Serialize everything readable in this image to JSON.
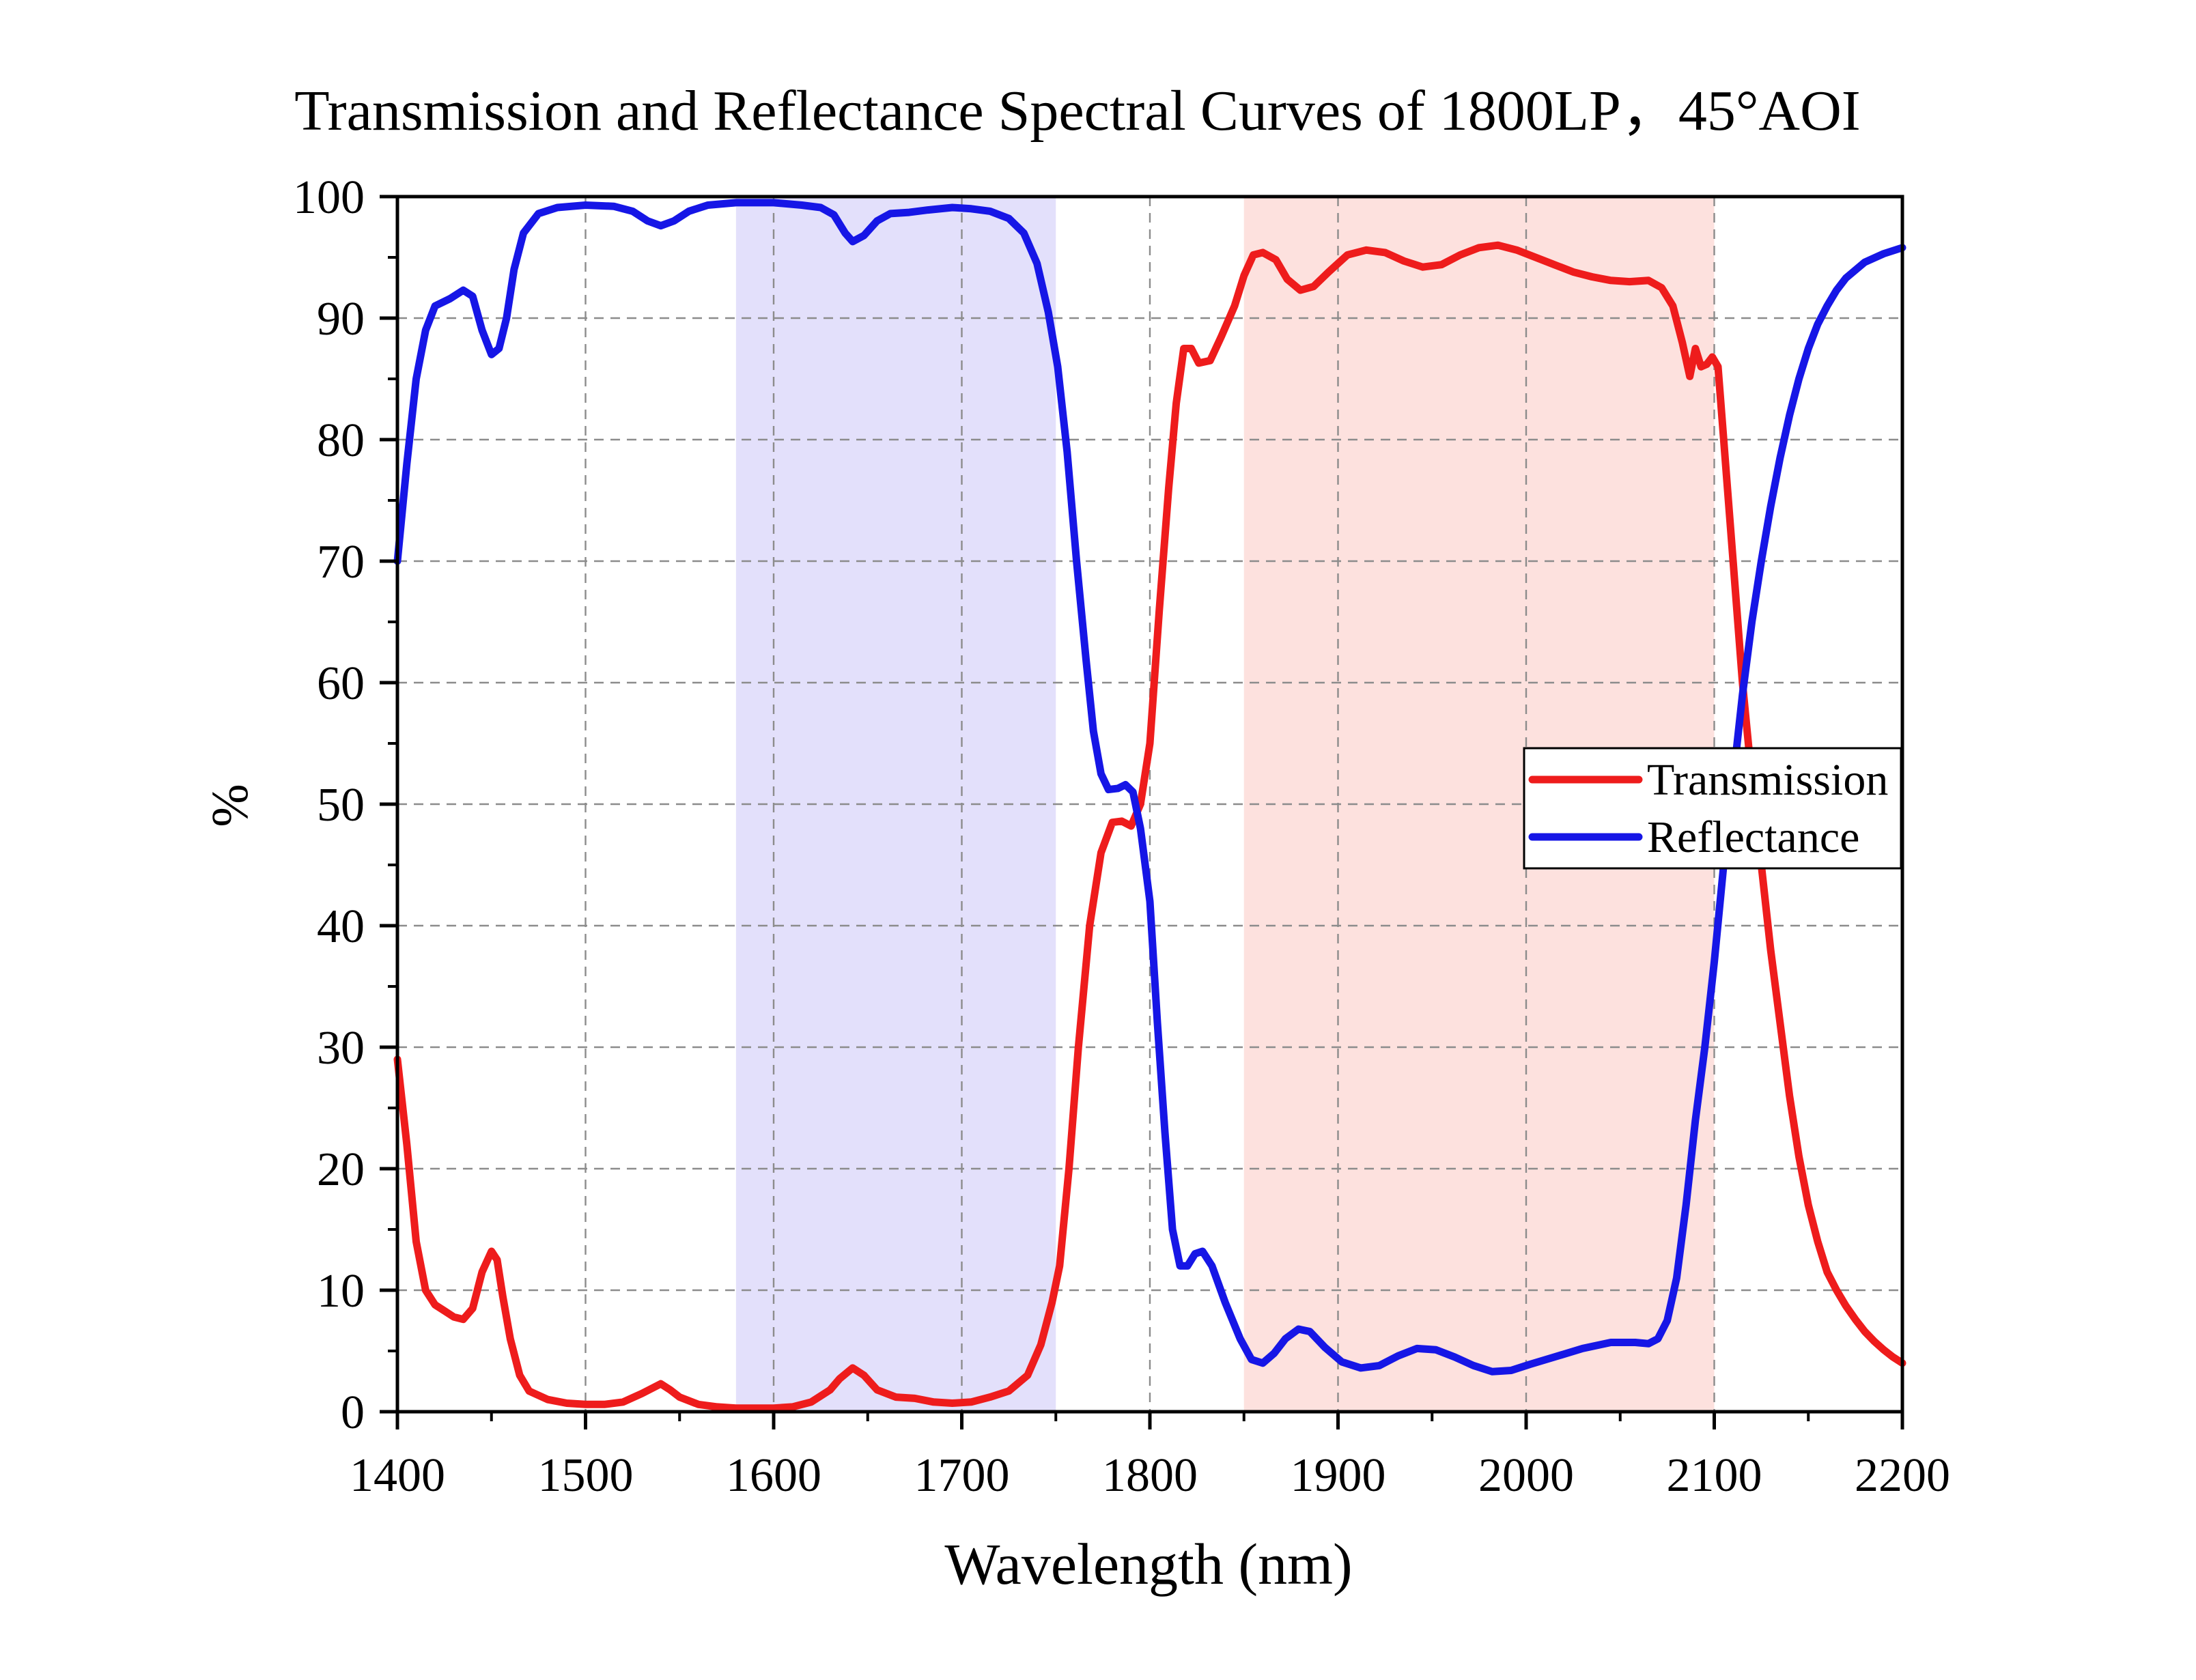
{
  "chart_data": {
    "type": "line",
    "title": "Transmission and Reflectance Spectral Curves of 1800LP，45°AOI",
    "xlabel": "Wavelength (nm)",
    "ylabel": "%",
    "xlim": [
      1400,
      2200
    ],
    "ylim": [
      0,
      100
    ],
    "xticks": [
      1400,
      1500,
      1600,
      1700,
      1800,
      1900,
      2000,
      2100,
      2200
    ],
    "yticks": [
      0,
      10,
      20,
      30,
      40,
      50,
      60,
      70,
      80,
      90,
      100
    ],
    "grid": true,
    "legend_position": "right-middle",
    "shaded_bands": [
      {
        "x": [
          1580,
          1750
        ],
        "color": "#e3e0fb"
      },
      {
        "x": [
          1850,
          2100
        ],
        "color": "#fde1de"
      }
    ],
    "series": [
      {
        "name": "Transmission",
        "color": "#ee1c1c",
        "points": [
          [
            1400,
            29
          ],
          [
            1405,
            22
          ],
          [
            1410,
            14
          ],
          [
            1415,
            10
          ],
          [
            1420,
            8.8
          ],
          [
            1425,
            8.3
          ],
          [
            1430,
            7.8
          ],
          [
            1435,
            7.6
          ],
          [
            1440,
            8.5
          ],
          [
            1445,
            11.5
          ],
          [
            1450,
            13.2
          ],
          [
            1453,
            12.5
          ],
          [
            1456,
            9.5
          ],
          [
            1460,
            6
          ],
          [
            1465,
            3
          ],
          [
            1470,
            1.7
          ],
          [
            1480,
            1
          ],
          [
            1490,
            0.7
          ],
          [
            1500,
            0.6
          ],
          [
            1510,
            0.6
          ],
          [
            1520,
            0.8
          ],
          [
            1530,
            1.5
          ],
          [
            1540,
            2.3
          ],
          [
            1545,
            1.8
          ],
          [
            1550,
            1.2
          ],
          [
            1560,
            0.6
          ],
          [
            1570,
            0.4
          ],
          [
            1580,
            0.3
          ],
          [
            1590,
            0.3
          ],
          [
            1600,
            0.3
          ],
          [
            1610,
            0.4
          ],
          [
            1620,
            0.8
          ],
          [
            1630,
            1.8
          ],
          [
            1635,
            2.7
          ],
          [
            1642,
            3.6
          ],
          [
            1648,
            3.0
          ],
          [
            1655,
            1.8
          ],
          [
            1665,
            1.2
          ],
          [
            1675,
            1.1
          ],
          [
            1685,
            0.8
          ],
          [
            1695,
            0.7
          ],
          [
            1705,
            0.8
          ],
          [
            1715,
            1.2
          ],
          [
            1725,
            1.7
          ],
          [
            1735,
            3
          ],
          [
            1742,
            5.5
          ],
          [
            1748,
            9
          ],
          [
            1752,
            12
          ],
          [
            1757,
            20
          ],
          [
            1762,
            30
          ],
          [
            1768,
            40
          ],
          [
            1774,
            46
          ],
          [
            1780,
            48.5
          ],
          [
            1785,
            48.6
          ],
          [
            1790,
            48.2
          ],
          [
            1795,
            50
          ],
          [
            1800,
            55
          ],
          [
            1805,
            66
          ],
          [
            1810,
            76
          ],
          [
            1814,
            83
          ],
          [
            1818,
            87.5
          ],
          [
            1822,
            87.5
          ],
          [
            1826,
            86.3
          ],
          [
            1832,
            86.5
          ],
          [
            1838,
            88.5
          ],
          [
            1845,
            91
          ],
          [
            1850,
            93.5
          ],
          [
            1855,
            95.2
          ],
          [
            1860,
            95.4
          ],
          [
            1867,
            94.8
          ],
          [
            1873,
            93.2
          ],
          [
            1880,
            92.3
          ],
          [
            1887,
            92.6
          ],
          [
            1895,
            93.8
          ],
          [
            1905,
            95.2
          ],
          [
            1915,
            95.6
          ],
          [
            1925,
            95.4
          ],
          [
            1935,
            94.7
          ],
          [
            1945,
            94.2
          ],
          [
            1955,
            94.4
          ],
          [
            1965,
            95.2
          ],
          [
            1975,
            95.8
          ],
          [
            1985,
            96
          ],
          [
            1995,
            95.6
          ],
          [
            2005,
            95
          ],
          [
            2015,
            94.4
          ],
          [
            2025,
            93.8
          ],
          [
            2035,
            93.4
          ],
          [
            2045,
            93.1
          ],
          [
            2055,
            93
          ],
          [
            2065,
            93.1
          ],
          [
            2072,
            92.5
          ],
          [
            2078,
            91
          ],
          [
            2083,
            88
          ],
          [
            2087,
            85.2
          ],
          [
            2090,
            87.5
          ],
          [
            2093,
            86
          ],
          [
            2096,
            86.2
          ],
          [
            2099,
            86.8
          ],
          [
            2102,
            86
          ],
          [
            2105,
            80
          ],
          [
            2110,
            70
          ],
          [
            2115,
            60
          ],
          [
            2120,
            52
          ],
          [
            2125,
            45
          ],
          [
            2130,
            38
          ],
          [
            2135,
            32
          ],
          [
            2140,
            26
          ],
          [
            2145,
            21
          ],
          [
            2150,
            17
          ],
          [
            2155,
            14
          ],
          [
            2160,
            11.5
          ],
          [
            2165,
            10
          ],
          [
            2170,
            8.7
          ],
          [
            2175,
            7.6
          ],
          [
            2180,
            6.6
          ],
          [
            2185,
            5.8
          ],
          [
            2190,
            5.1
          ],
          [
            2195,
            4.5
          ],
          [
            2200,
            4.0
          ]
        ]
      },
      {
        "name": "Reflectance",
        "color": "#1616e6",
        "points": [
          [
            1400,
            70
          ],
          [
            1405,
            78
          ],
          [
            1410,
            85
          ],
          [
            1415,
            89
          ],
          [
            1420,
            91
          ],
          [
            1428,
            91.6
          ],
          [
            1435,
            92.3
          ],
          [
            1440,
            91.8
          ],
          [
            1445,
            89
          ],
          [
            1450,
            87
          ],
          [
            1454,
            87.5
          ],
          [
            1458,
            90
          ],
          [
            1462,
            94
          ],
          [
            1467,
            97
          ],
          [
            1475,
            98.6
          ],
          [
            1485,
            99.1
          ],
          [
            1500,
            99.3
          ],
          [
            1515,
            99.2
          ],
          [
            1525,
            98.8
          ],
          [
            1533,
            98
          ],
          [
            1540,
            97.6
          ],
          [
            1547,
            98
          ],
          [
            1555,
            98.8
          ],
          [
            1565,
            99.3
          ],
          [
            1580,
            99.5
          ],
          [
            1600,
            99.5
          ],
          [
            1615,
            99.3
          ],
          [
            1625,
            99.1
          ],
          [
            1632,
            98.5
          ],
          [
            1638,
            97
          ],
          [
            1642,
            96.3
          ],
          [
            1648,
            96.8
          ],
          [
            1655,
            98
          ],
          [
            1662,
            98.6
          ],
          [
            1672,
            98.7
          ],
          [
            1682,
            98.9
          ],
          [
            1695,
            99.1
          ],
          [
            1705,
            99
          ],
          [
            1715,
            98.8
          ],
          [
            1725,
            98.2
          ],
          [
            1733,
            97
          ],
          [
            1740,
            94.5
          ],
          [
            1746,
            90.5
          ],
          [
            1751,
            86
          ],
          [
            1756,
            79
          ],
          [
            1761,
            70
          ],
          [
            1766,
            62
          ],
          [
            1770,
            56
          ],
          [
            1774,
            52.5
          ],
          [
            1778,
            51.2
          ],
          [
            1783,
            51.3
          ],
          [
            1787,
            51.6
          ],
          [
            1791,
            51
          ],
          [
            1795,
            48
          ],
          [
            1800,
            42
          ],
          [
            1804,
            32
          ],
          [
            1808,
            23
          ],
          [
            1812,
            15
          ],
          [
            1816,
            12
          ],
          [
            1820,
            12
          ],
          [
            1824,
            13
          ],
          [
            1828,
            13.2
          ],
          [
            1833,
            12
          ],
          [
            1840,
            9
          ],
          [
            1848,
            6
          ],
          [
            1854,
            4.3
          ],
          [
            1860,
            4
          ],
          [
            1866,
            4.8
          ],
          [
            1872,
            6
          ],
          [
            1879,
            6.8
          ],
          [
            1885,
            6.6
          ],
          [
            1893,
            5.3
          ],
          [
            1902,
            4.1
          ],
          [
            1912,
            3.6
          ],
          [
            1922,
            3.8
          ],
          [
            1932,
            4.6
          ],
          [
            1942,
            5.2
          ],
          [
            1952,
            5.1
          ],
          [
            1962,
            4.5
          ],
          [
            1972,
            3.8
          ],
          [
            1982,
            3.3
          ],
          [
            1992,
            3.4
          ],
          [
            2002,
            3.9
          ],
          [
            2015,
            4.5
          ],
          [
            2030,
            5.2
          ],
          [
            2045,
            5.7
          ],
          [
            2058,
            5.7
          ],
          [
            2065,
            5.6
          ],
          [
            2070,
            6
          ],
          [
            2075,
            7.5
          ],
          [
            2080,
            11
          ],
          [
            2085,
            17
          ],
          [
            2090,
            24
          ],
          [
            2095,
            30
          ],
          [
            2100,
            37
          ],
          [
            2105,
            45
          ],
          [
            2110,
            52
          ],
          [
            2115,
            59
          ],
          [
            2120,
            65
          ],
          [
            2125,
            70
          ],
          [
            2130,
            74.5
          ],
          [
            2135,
            78.5
          ],
          [
            2140,
            82
          ],
          [
            2145,
            85
          ],
          [
            2150,
            87.5
          ],
          [
            2155,
            89.5
          ],
          [
            2160,
            91
          ],
          [
            2165,
            92.3
          ],
          [
            2170,
            93.3
          ],
          [
            2180,
            94.6
          ],
          [
            2190,
            95.3
          ],
          [
            2200,
            95.8
          ]
        ]
      }
    ]
  }
}
